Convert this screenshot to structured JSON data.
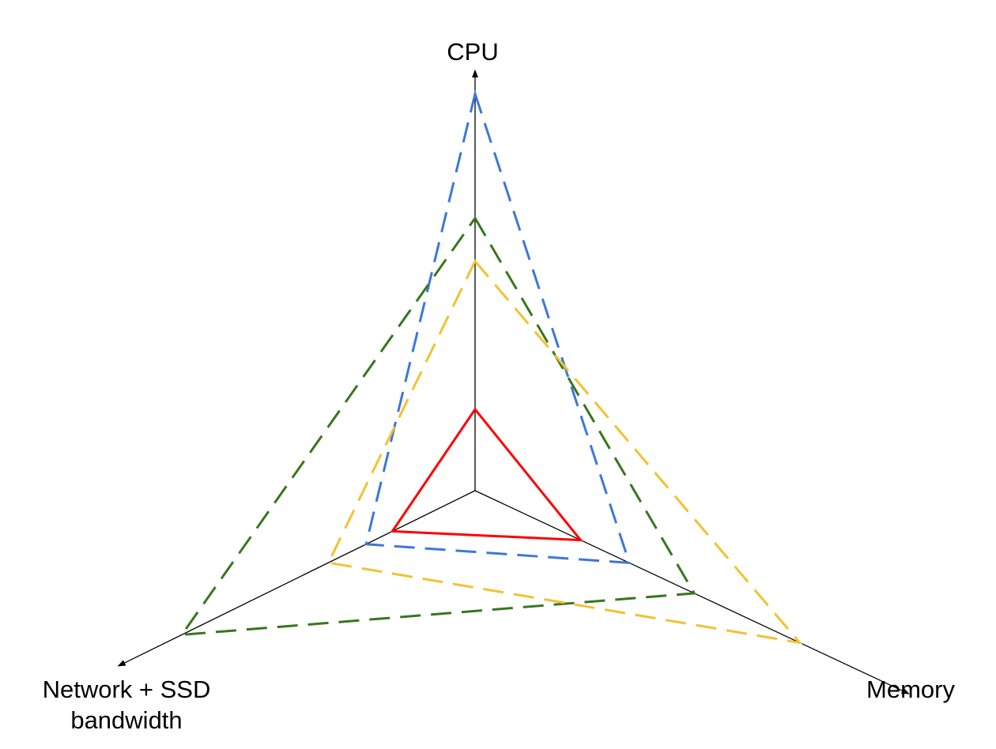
{
  "chart_data": {
    "type": "radar",
    "axes": [
      {
        "key": "cpu",
        "label_lines": [
          "CPU"
        ],
        "max": 10
      },
      {
        "key": "memory",
        "label_lines": [
          "Memory"
        ],
        "max": 10
      },
      {
        "key": "network",
        "label_lines": [
          "Network + SSD",
          "bandwidth"
        ],
        "max": 10
      }
    ],
    "series": [
      {
        "values": {
          "cpu": 1.7,
          "memory": 2.6,
          "network": 2.2
        },
        "color": "#ff0000",
        "style": "solid"
      },
      {
        "values": {
          "cpu": 8.3,
          "memory": 3.8,
          "network": 2.9
        },
        "color": "#3c78d8",
        "style": "dashed"
      },
      {
        "values": {
          "cpu": 5.7,
          "memory": 5.4,
          "network": 7.8
        },
        "color": "#38761d",
        "style": "dashed"
      },
      {
        "values": {
          "cpu": 4.8,
          "memory": 8.0,
          "network": 3.9
        },
        "color": "#f1c232",
        "style": "dashed"
      }
    ],
    "grid": false,
    "legend": "none"
  }
}
